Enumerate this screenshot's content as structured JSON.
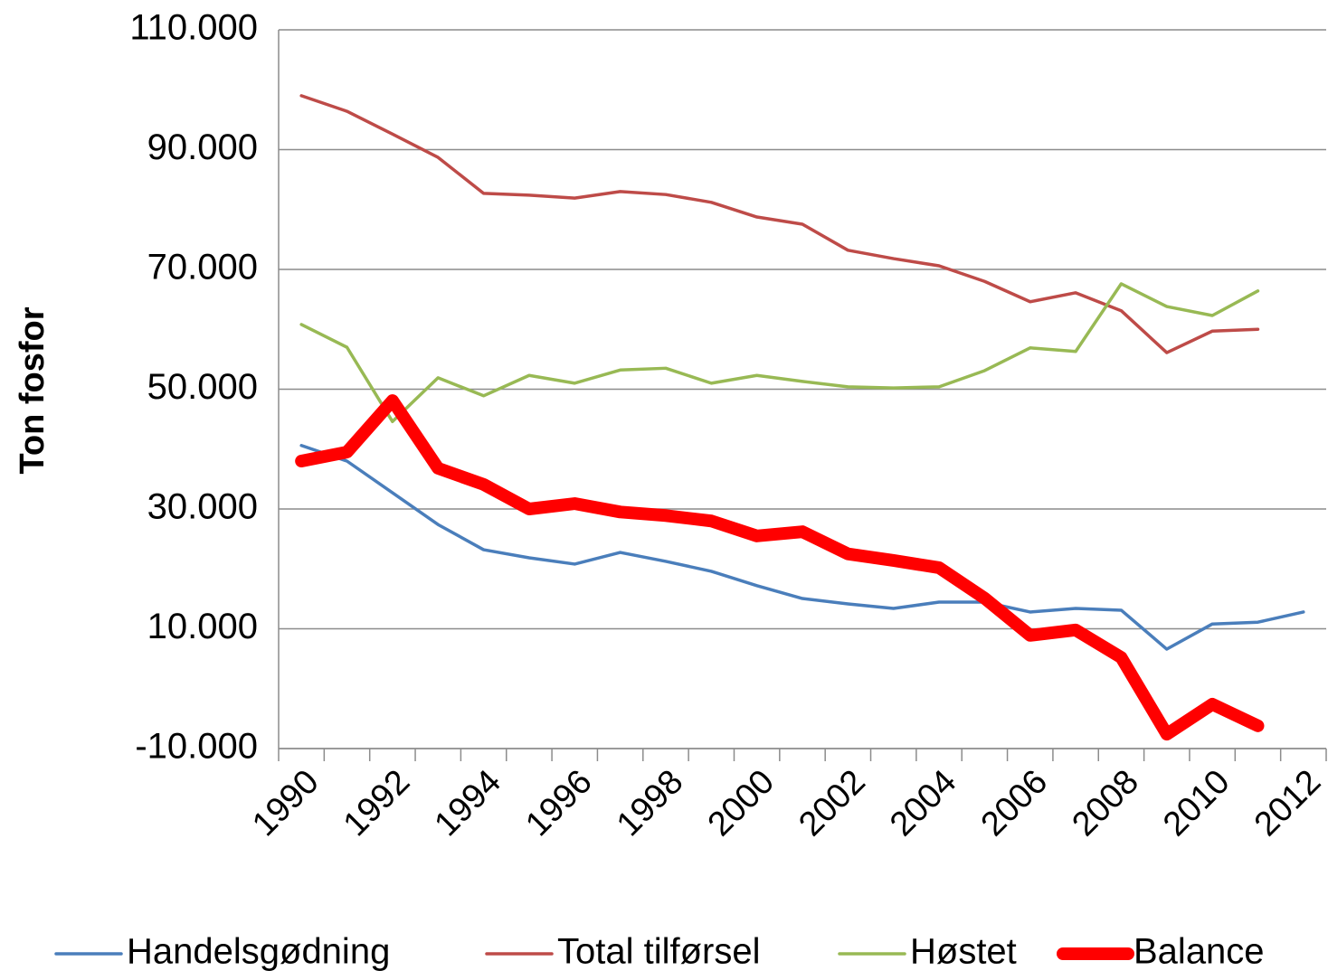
{
  "chart_data": {
    "type": "line",
    "y_label": "Ton fosfor",
    "categories": [
      "1990",
      null,
      "1992",
      null,
      "1994",
      null,
      "1996",
      null,
      "1998",
      null,
      "2000",
      null,
      "2002",
      null,
      "2004",
      null,
      "2006",
      null,
      "2008",
      null,
      "2010",
      null,
      "2012"
    ],
    "ylim": [
      -10000,
      110000
    ],
    "yticks": [
      {
        "value": -10000,
        "label": "-10.000"
      },
      {
        "value": 10000,
        "label": "10.000"
      },
      {
        "value": 30000,
        "label": "30.000"
      },
      {
        "value": 50000,
        "label": "50.000"
      },
      {
        "value": 70000,
        "label": "70.000"
      },
      {
        "value": 90000,
        "label": "90.000"
      },
      {
        "value": 110000,
        "label": "110.000"
      }
    ],
    "grid": true,
    "legend": "bottom",
    "series": [
      {
        "name": "Handelsgødning",
        "color": "#4a7ebb",
        "linewidth": 3.5,
        "values": [
          40600,
          38000,
          32700,
          27400,
          23200,
          21850,
          20800,
          22750,
          21250,
          19600,
          17200,
          15050,
          14150,
          13400,
          14450,
          14450,
          12800,
          13400,
          13100,
          6600,
          10800,
          11100,
          12800
        ]
      },
      {
        "name": "Total tilførsel",
        "color": "#be4b48",
        "linewidth": 3.5,
        "values": [
          99000,
          96400,
          92600,
          88700,
          82700,
          82400,
          81900,
          83000,
          82500,
          81200,
          78750,
          77550,
          73200,
          71800,
          70600,
          68000,
          64600,
          66100,
          63100,
          56100,
          59700,
          60000,
          null
        ]
      },
      {
        "name": "Høstet",
        "color": "#98b954",
        "linewidth": 3.5,
        "values": [
          60800,
          57000,
          44600,
          51900,
          48900,
          52300,
          51000,
          53200,
          53500,
          51000,
          52300,
          51300,
          50400,
          50200,
          50400,
          53100,
          56900,
          56300,
          67600,
          63800,
          62300,
          66400,
          null
        ]
      },
      {
        "name": "Balance",
        "color": "#ff0000",
        "linewidth": 14,
        "values": [
          38000,
          39500,
          48100,
          36800,
          34100,
          30000,
          30900,
          29500,
          28900,
          28000,
          25500,
          26200,
          22500,
          21400,
          20200,
          15100,
          8900,
          9800,
          5200,
          -7600,
          -2600,
          -6200,
          null
        ]
      }
    ]
  }
}
